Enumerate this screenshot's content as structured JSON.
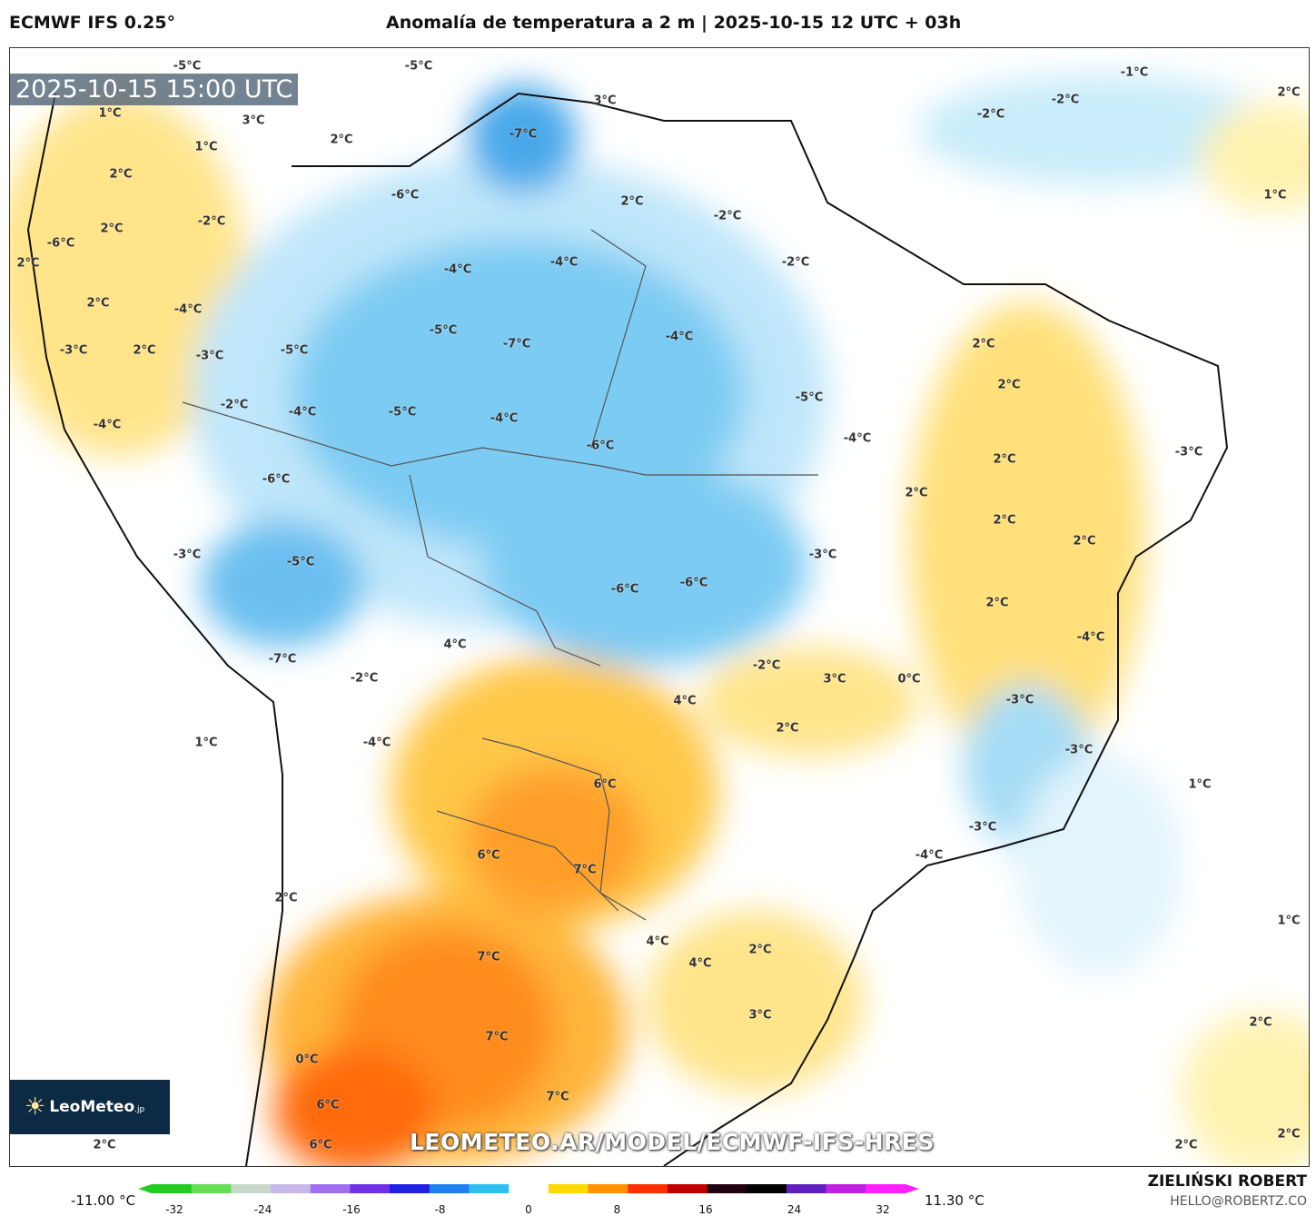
{
  "header": {
    "model": "ECMWF IFS 0.25°",
    "title": "Anomalía de temperatura a 2 m | 2025-10-15 12 UTC + 03h"
  },
  "map": {
    "valid_time": "2025-10-15 15:00 UTC",
    "watermark": "LEOMETEO.AR/MODEL/ECMWF-IFS-HRES",
    "logo_text": "LeoMeteo",
    "logo_suffix": ".jp",
    "contour_labels": [
      "-5°C",
      "-5°C",
      "-7°C",
      "3°C",
      "3°C",
      "1°C",
      "1°C",
      "2°C",
      "2°C",
      "-6°C",
      "2°C",
      "-2°C",
      "2°C",
      "-2°C",
      "-6°C",
      "-2°C",
      "2°C",
      "-4°C",
      "-4°C",
      "2°C",
      "-4°C",
      "-5°C",
      "-7°C",
      "-4°C",
      "2°C",
      "-3°C",
      "2°C",
      "-5°C",
      "-3°C",
      "2°C",
      "-5°C",
      "-2°C",
      "-4°C",
      "-5°C",
      "-4°C",
      "-4°C",
      "-4°C",
      "-6°C",
      "2°C",
      "-3°C",
      "-6°C",
      "2°C",
      "2°C",
      "2°C",
      "-3°C",
      "-3°C",
      "-5°C",
      "-6°C",
      "-6°C",
      "2°C",
      "-4°C",
      "4°C",
      "-7°C",
      "-2°C",
      "3°C",
      "0°C",
      "-2°C",
      "-3°C",
      "4°C",
      "2°C",
      "1°C",
      "-4°C",
      "-3°C",
      "6°C",
      "1°C",
      "-3°C",
      "-4°C",
      "6°C",
      "7°C",
      "2°C",
      "1°C",
      "4°C",
      "2°C",
      "7°C",
      "4°C",
      "3°C",
      "2°C",
      "7°C",
      "0°C",
      "7°C",
      "6°C",
      "6°C",
      "2°C",
      "2°C",
      "2°C",
      "2°C",
      "-1°C",
      "-2°C",
      "-2°C",
      "1°C"
    ]
  },
  "colorbar": {
    "min_label": "-11.00 °C",
    "max_label": "11.30 °C",
    "ticks": [
      "-32",
      "-24",
      "-16",
      "-8",
      "0",
      "8",
      "16",
      "24",
      "32"
    ],
    "colors": [
      "#22cc22",
      "#66dd55",
      "#c8d8c8",
      "#c8b8e8",
      "#a070f0",
      "#7030e8",
      "#2020e0",
      "#2080f0",
      "#30c0f0",
      "#ffffff",
      "#ffd800",
      "#ff9000",
      "#ff3000",
      "#c00000",
      "#200010",
      "#000000",
      "#6020c0",
      "#c020e0",
      "#ff20ff"
    ]
  },
  "footer": {
    "author": "ZIELIŃSKI ROBERT",
    "email": "HELLO@ROBERTZ.CO"
  }
}
